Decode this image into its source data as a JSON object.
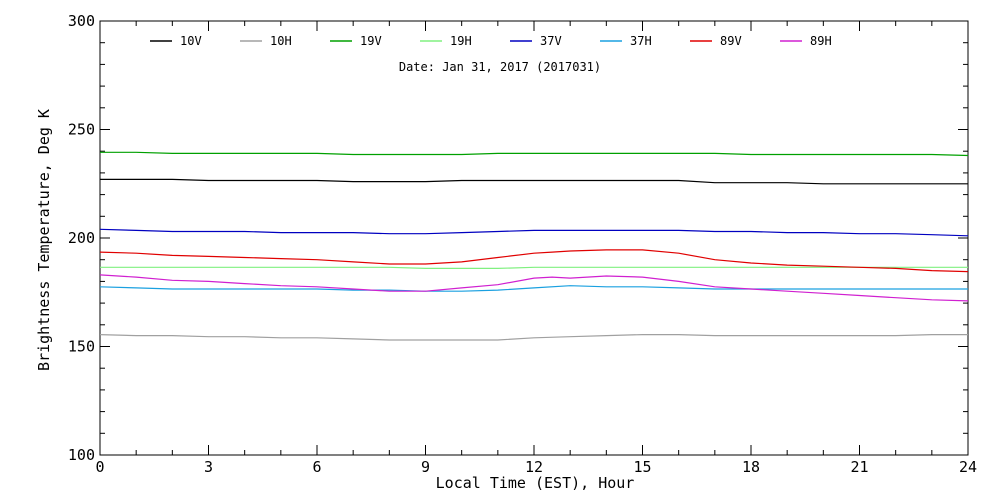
{
  "chart_data": {
    "type": "line",
    "subtitle": "Date: Jan 31, 2017 (2017031)",
    "xlabel": "Local Time (EST), Hour",
    "ylabel": "Brightness Temperature, Deg K",
    "xlim": [
      0,
      24
    ],
    "ylim": [
      100,
      300
    ],
    "xticks": [
      0,
      3,
      6,
      9,
      12,
      15,
      18,
      21,
      24
    ],
    "yticks": [
      100,
      150,
      200,
      250,
      300
    ],
    "grid": false,
    "legend_position": "top",
    "series": [
      {
        "name": "10V",
        "color": "#000000",
        "x": [
          0,
          1,
          2,
          3,
          4,
          5,
          6,
          7,
          8,
          9,
          10,
          11,
          12,
          13,
          14,
          15,
          16,
          17,
          18,
          19,
          20,
          21,
          22,
          23,
          24
        ],
        "y": [
          227,
          227,
          227,
          226.5,
          226.5,
          226.5,
          226.5,
          226,
          226,
          226,
          226.5,
          226.5,
          226.5,
          226.5,
          226.5,
          226.5,
          226.5,
          225.5,
          225.5,
          225.5,
          225,
          225,
          225,
          225,
          225
        ]
      },
      {
        "name": "10H",
        "color": "#a0a0a0",
        "x": [
          0,
          1,
          2,
          3,
          4,
          5,
          6,
          7,
          8,
          9,
          10,
          11,
          12,
          13,
          14,
          15,
          16,
          17,
          18,
          19,
          20,
          21,
          22,
          23,
          24
        ],
        "y": [
          155.5,
          155,
          155,
          154.5,
          154.5,
          154,
          154,
          153.5,
          153,
          153,
          153,
          153,
          154,
          154.5,
          155,
          155.5,
          155.5,
          155,
          155,
          155,
          155,
          155,
          155,
          155.5,
          155.5
        ]
      },
      {
        "name": "19V",
        "color": "#00a000",
        "x": [
          0,
          1,
          2,
          3,
          4,
          5,
          6,
          7,
          8,
          9,
          10,
          11,
          12,
          13,
          14,
          15,
          16,
          17,
          18,
          19,
          20,
          21,
          22,
          23,
          24
        ],
        "y": [
          239.5,
          239.5,
          239,
          239,
          239,
          239,
          239,
          238.5,
          238.5,
          238.5,
          238.5,
          239,
          239,
          239,
          239,
          239,
          239,
          239,
          238.5,
          238.5,
          238.5,
          238.5,
          238.5,
          238.5,
          238
        ]
      },
      {
        "name": "19H",
        "color": "#80f080",
        "x": [
          0,
          1,
          2,
          3,
          4,
          5,
          6,
          7,
          8,
          9,
          10,
          11,
          12,
          13,
          14,
          15,
          16,
          17,
          18,
          19,
          20,
          21,
          22,
          23,
          24
        ],
        "y": [
          186.5,
          186.5,
          186.5,
          186.5,
          186.5,
          186.5,
          186.5,
          186.5,
          186.5,
          186,
          186,
          186,
          186.5,
          186.5,
          186.5,
          186.5,
          186.5,
          186.5,
          186.5,
          186.5,
          186.5,
          186.5,
          186.5,
          186.5,
          186.5
        ]
      },
      {
        "name": "37V",
        "color": "#0000c0",
        "x": [
          0,
          1,
          2,
          3,
          4,
          5,
          6,
          7,
          8,
          9,
          10,
          11,
          12,
          13,
          14,
          15,
          16,
          17,
          18,
          19,
          20,
          21,
          22,
          23,
          24
        ],
        "y": [
          204,
          203.5,
          203,
          203,
          203,
          202.5,
          202.5,
          202.5,
          202,
          202,
          202.5,
          203,
          203.5,
          203.5,
          203.5,
          203.5,
          203.5,
          203,
          203,
          202.5,
          202.5,
          202,
          202,
          201.5,
          201
        ]
      },
      {
        "name": "37H",
        "color": "#1aa0e0",
        "x": [
          0,
          1,
          2,
          3,
          4,
          5,
          6,
          7,
          8,
          9,
          10,
          11,
          12,
          13,
          14,
          15,
          16,
          17,
          18,
          19,
          20,
          21,
          22,
          23,
          24
        ],
        "y": [
          177.5,
          177,
          176.5,
          176.5,
          176.5,
          176.5,
          176.5,
          176,
          176,
          175.5,
          175.5,
          176,
          177,
          178,
          177.5,
          177.5,
          177,
          176.5,
          176.5,
          176.5,
          176.5,
          176.5,
          176.5,
          176.5,
          176.5
        ]
      },
      {
        "name": "89V",
        "color": "#e00000",
        "x": [
          0,
          1,
          2,
          3,
          4,
          5,
          6,
          7,
          8,
          9,
          10,
          11,
          12,
          12.5,
          13,
          14,
          15,
          16,
          17,
          18,
          19,
          20,
          21,
          22,
          23,
          24
        ],
        "y": [
          193.5,
          193,
          192,
          191.5,
          191,
          190.5,
          190,
          189,
          188,
          188,
          189,
          191,
          193,
          193.5,
          194,
          194.5,
          194.5,
          193,
          190,
          188.5,
          187.5,
          187,
          186.5,
          186,
          185,
          184.5
        ]
      },
      {
        "name": "89H",
        "color": "#d020d0",
        "x": [
          0,
          1,
          2,
          3,
          4,
          5,
          6,
          7,
          8,
          9,
          10,
          11,
          12,
          12.5,
          13,
          14,
          15,
          16,
          17,
          18,
          19,
          20,
          21,
          22,
          23,
          24
        ],
        "y": [
          183,
          182,
          180.5,
          180,
          179,
          178,
          177.5,
          176.5,
          175.5,
          175.5,
          177,
          178.5,
          181.5,
          182,
          181.5,
          182.5,
          182,
          180,
          177.5,
          176.5,
          175.5,
          174.5,
          173.5,
          172.5,
          171.5,
          171
        ]
      }
    ]
  }
}
